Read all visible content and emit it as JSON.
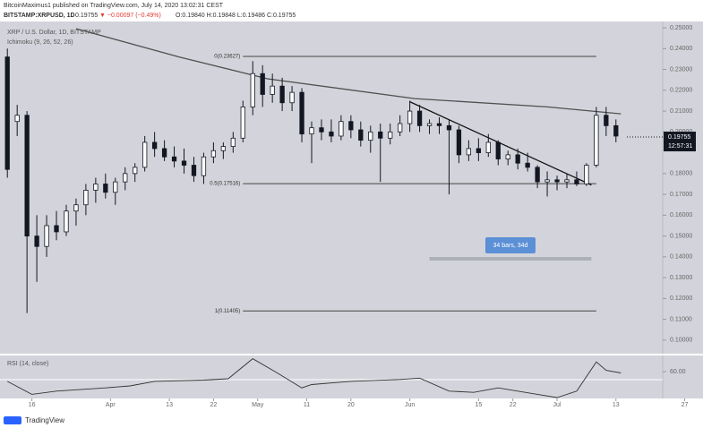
{
  "header": {
    "line1": "BitcoinMaximus1 published on TradingView.com, July 14, 2020 13:02:31 CEST",
    "symbol": "BITSTAMP:XRPUSD, 1D",
    "last": "0.19755",
    "change": "▼ −0.00097 (−0.49%)",
    "ohlc": "O:0.19840 H:0.19848 L:0.19486 C:0.19755"
  },
  "footer": "TradingView",
  "chart_data": {
    "type": "candlestick",
    "title": "XRP / U.S. Dollar, 1D, BITSTAMP",
    "indicator": "Ichimoku (9, 26, 52, 26)",
    "candles": {
      "x": [
        0,
        2,
        4,
        6,
        8,
        10,
        12,
        14,
        16,
        18,
        20,
        22,
        24,
        26,
        28,
        30,
        32,
        34,
        36,
        38,
        40,
        42,
        44,
        46,
        48,
        50,
        52,
        54,
        56,
        58,
        60,
        62,
        64,
        66,
        68,
        70,
        72,
        74,
        76,
        78,
        80,
        82,
        84,
        86,
        88,
        90,
        92,
        94,
        96,
        98,
        100,
        102,
        104,
        106,
        108,
        110,
        112,
        114,
        116,
        118,
        120,
        122,
        124
      ],
      "open": [
        0.236,
        0.205,
        0.208,
        0.15,
        0.145,
        0.155,
        0.152,
        0.162,
        0.165,
        0.172,
        0.175,
        0.171,
        0.176,
        0.18,
        0.183,
        0.195,
        0.192,
        0.188,
        0.186,
        0.184,
        0.179,
        0.188,
        0.191,
        0.193,
        0.197,
        0.212,
        0.228,
        0.218,
        0.222,
        0.214,
        0.219,
        0.199,
        0.202,
        0.2,
        0.198,
        0.205,
        0.201,
        0.196,
        0.2,
        0.197,
        0.2,
        0.204,
        0.21,
        0.203,
        0.204,
        0.203,
        0.201,
        0.189,
        0.192,
        0.19,
        0.195,
        0.187,
        0.189,
        0.185,
        0.183,
        0.176,
        0.177,
        0.176,
        0.177,
        0.175,
        0.184,
        0.208,
        0.203
      ],
      "high": [
        0.24,
        0.213,
        0.21,
        0.16,
        0.16,
        0.162,
        0.165,
        0.168,
        0.175,
        0.178,
        0.18,
        0.178,
        0.183,
        0.185,
        0.198,
        0.2,
        0.196,
        0.193,
        0.192,
        0.188,
        0.19,
        0.195,
        0.195,
        0.2,
        0.215,
        0.234,
        0.232,
        0.228,
        0.226,
        0.222,
        0.221,
        0.205,
        0.206,
        0.206,
        0.208,
        0.208,
        0.205,
        0.203,
        0.204,
        0.204,
        0.208,
        0.215,
        0.213,
        0.206,
        0.207,
        0.206,
        0.203,
        0.196,
        0.197,
        0.199,
        0.196,
        0.191,
        0.192,
        0.19,
        0.184,
        0.181,
        0.179,
        0.18,
        0.181,
        0.185,
        0.212,
        0.212,
        0.206
      ],
      "low": [
        0.178,
        0.198,
        0.113,
        0.128,
        0.14,
        0.148,
        0.15,
        0.155,
        0.16,
        0.166,
        0.168,
        0.165,
        0.172,
        0.176,
        0.181,
        0.188,
        0.186,
        0.183,
        0.18,
        0.176,
        0.175,
        0.185,
        0.187,
        0.19,
        0.195,
        0.208,
        0.212,
        0.214,
        0.21,
        0.21,
        0.195,
        0.185,
        0.196,
        0.195,
        0.196,
        0.197,
        0.193,
        0.19,
        0.176,
        0.194,
        0.198,
        0.2,
        0.2,
        0.199,
        0.199,
        0.17,
        0.185,
        0.186,
        0.186,
        0.188,
        0.184,
        0.184,
        0.182,
        0.181,
        0.173,
        0.169,
        0.172,
        0.173,
        0.174,
        0.174,
        0.183,
        0.198,
        0.195
      ],
      "close": [
        0.182,
        0.208,
        0.15,
        0.145,
        0.155,
        0.152,
        0.162,
        0.165,
        0.172,
        0.175,
        0.171,
        0.176,
        0.18,
        0.183,
        0.195,
        0.192,
        0.188,
        0.186,
        0.184,
        0.179,
        0.188,
        0.191,
        0.193,
        0.197,
        0.212,
        0.228,
        0.218,
        0.222,
        0.214,
        0.219,
        0.199,
        0.202,
        0.2,
        0.198,
        0.205,
        0.201,
        0.196,
        0.2,
        0.197,
        0.2,
        0.204,
        0.21,
        0.203,
        0.204,
        0.203,
        0.201,
        0.189,
        0.192,
        0.19,
        0.195,
        0.187,
        0.189,
        0.185,
        0.183,
        0.176,
        0.177,
        0.176,
        0.177,
        0.175,
        0.184,
        0.208,
        0.203,
        0.198
      ]
    },
    "up_color": "#ffffff",
    "down_color": "#131722",
    "ma": {
      "x": [
        14,
        35,
        53,
        83,
        110,
        125
      ],
      "values": [
        0.2496,
        0.236,
        0.2255,
        0.216,
        0.212,
        0.2087
      ],
      "color": "#505050"
    },
    "trendline": {
      "x": [
        82,
        119
      ],
      "values": [
        0.2145,
        0.1745
      ]
    },
    "fib": [
      {
        "value": 0.23627,
        "label": "0(0.23627)"
      },
      {
        "value": 0.17516,
        "label": "0.5(0.17516)"
      },
      {
        "value": 0.11405,
        "label": "1(0.11405)"
      }
    ],
    "fib_x": [
      48,
      120
    ],
    "measure": {
      "label": "34 bars, 34d",
      "x": [
        86,
        119
      ]
    },
    "last_price": {
      "value": 0.19755,
      "label": "0.19755",
      "countdown": "12:57:31"
    },
    "xlim": [
      -1.5,
      139
    ],
    "ylim": [
      0.0935,
      0.2526
    ],
    "xticks": [
      {
        "value": 5,
        "label": "16"
      },
      {
        "value": 21,
        "label": "Apr"
      },
      {
        "value": 33,
        "label": "13"
      },
      {
        "value": 42,
        "label": "22"
      },
      {
        "value": 51,
        "label": "May"
      },
      {
        "value": 61,
        "label": "11"
      },
      {
        "value": 70,
        "label": "20"
      },
      {
        "value": 82,
        "label": "Jun"
      },
      {
        "value": 96,
        "label": "15"
      },
      {
        "value": 103,
        "label": "22"
      },
      {
        "value": 112,
        "label": "Jul"
      },
      {
        "value": 124,
        "label": "13"
      },
      {
        "value": 138,
        "label": "27"
      }
    ],
    "yticks": [
      {
        "value": 0.1,
        "label": "0.10000"
      },
      {
        "value": 0.11,
        "label": "0.11000"
      },
      {
        "value": 0.12,
        "label": "0.12000"
      },
      {
        "value": 0.13,
        "label": "0.13000"
      },
      {
        "value": 0.14,
        "label": "0.14000"
      },
      {
        "value": 0.15,
        "label": "0.15000"
      },
      {
        "value": 0.16,
        "label": "0.16000"
      },
      {
        "value": 0.17,
        "label": "0.17000"
      },
      {
        "value": 0.18,
        "label": "0.18000"
      },
      {
        "value": 0.2,
        "label": "0.20000"
      },
      {
        "value": 0.21,
        "label": "0.21000"
      },
      {
        "value": 0.22,
        "label": "0.22000"
      },
      {
        "value": 0.23,
        "label": "0.23000"
      },
      {
        "value": 0.24,
        "label": "0.24000"
      },
      {
        "value": 0.25,
        "label": "0.25000"
      }
    ],
    "rsi": {
      "title": "RSI (14, close)",
      "x": [
        0,
        5,
        10,
        20,
        25,
        30,
        40,
        45,
        50,
        55,
        60,
        62,
        70,
        80,
        84,
        90,
        95,
        100,
        108,
        112,
        116,
        120,
        122,
        125
      ],
      "values": [
        45,
        25,
        30,
        35,
        38,
        45,
        47,
        49,
        80,
        58,
        35,
        40,
        45,
        48,
        50,
        30,
        28,
        35,
        25,
        20,
        30,
        75,
        62,
        58
      ],
      "ylim": [
        20,
        85
      ],
      "yticks": [
        {
          "value": 60,
          "label": "60.00"
        }
      ],
      "color": "#333333"
    }
  }
}
